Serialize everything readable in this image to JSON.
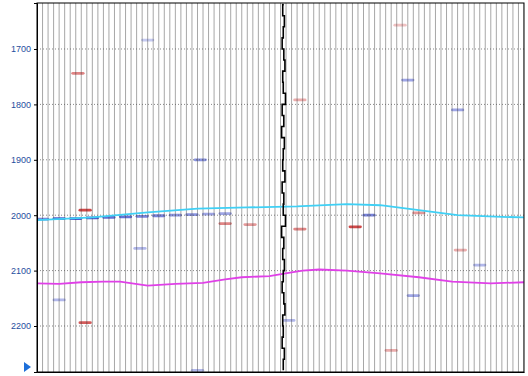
{
  "chart_data": {
    "type": "seismic",
    "xlim": [
      0,
      88
    ],
    "xticks": [
      0,
      1,
      2,
      3,
      4,
      5,
      6,
      7,
      8,
      9,
      10,
      11,
      12,
      13,
      14,
      15,
      16,
      17,
      18,
      19,
      20,
      21,
      22,
      23,
      24,
      25,
      26,
      27,
      28,
      29,
      30,
      31,
      32,
      33,
      34,
      35,
      36,
      37,
      38,
      39,
      40,
      41,
      42,
      43,
      44,
      45,
      46,
      47,
      48,
      49,
      50,
      51,
      52,
      53,
      54,
      55,
      56,
      57,
      58,
      59,
      60,
      61,
      62,
      63,
      64,
      65,
      66,
      67,
      68,
      69,
      70,
      71,
      72,
      73,
      74,
      75,
      76,
      77,
      78,
      79,
      80,
      81,
      82,
      83,
      84,
      85,
      86,
      87,
      88
    ],
    "ylim": [
      1617,
      2283
    ],
    "yticks": [
      1700,
      1800,
      1900,
      2000,
      2100,
      2200
    ],
    "grid": true,
    "tick_labels": "y",
    "clim": [
      -1,
      1
    ],
    "series": [
      {
        "type": "line",
        "color": "#3fd0f5",
        "x": [
          0,
          10,
          20,
          29,
          38,
          47,
          56,
          62,
          69,
          76,
          84,
          88
        ],
        "values": [
          2009,
          2004,
          1995,
          1988,
          1986,
          1984,
          1980,
          1982,
          1991,
          2000,
          2003,
          2004
        ]
      },
      {
        "type": "line",
        "color": "#e040e8",
        "x": [
          0,
          4,
          8,
          12,
          15,
          20,
          25,
          30,
          34,
          37,
          42,
          46,
          48,
          51,
          56,
          62,
          69,
          75,
          82,
          88
        ],
        "values": [
          2123,
          2124,
          2121,
          2120,
          2120,
          2127,
          2124,
          2122,
          2116,
          2112,
          2110,
          2103,
          2100,
          2098,
          2100,
          2105,
          2112,
          2120,
          2123,
          2121
        ]
      }
    ],
    "well_log": {
      "color": "#000000",
      "x": [
        44.6,
        44.4,
        44.7,
        44.5,
        44.3,
        44.6,
        44.8,
        44.4,
        44.5,
        44.9,
        44.3,
        44.6,
        44.2,
        44.7,
        44.5,
        44.4,
        44.8,
        44.3,
        44.6,
        44.5,
        44.9,
        44.2,
        44.6,
        44.4,
        44.7,
        44.5,
        44.3,
        44.6,
        44.8,
        44.4,
        44.5,
        44.3,
        44.7,
        44.5
      ],
      "y": [
        1620,
        1640,
        1660,
        1680,
        1700,
        1720,
        1740,
        1760,
        1780,
        1800,
        1820,
        1840,
        1860,
        1880,
        1900,
        1920,
        1940,
        1960,
        1980,
        2000,
        2020,
        2040,
        2060,
        2080,
        2100,
        2120,
        2140,
        2160,
        2180,
        2200,
        2220,
        2240,
        2260,
        2280
      ]
    },
    "amplitudes": {
      "x": [
        7.4,
        8.7,
        1,
        4,
        7,
        10,
        13,
        16,
        19,
        22,
        25,
        28,
        31,
        34,
        60,
        69,
        57.5,
        47.5,
        38.5,
        34,
        29.5,
        47.5,
        45.5,
        8.7,
        4,
        68,
        67,
        65.6,
        20,
        76,
        29,
        64,
        18.6,
        76.5,
        80
      ],
      "y": [
        1744,
        1991,
        2007,
        2006,
        2006,
        2005,
        2004,
        2003,
        2002,
        2001,
        2000,
        1999,
        1998,
        1997,
        2000,
        1996,
        2021,
        2025,
        2017,
        2015,
        1900,
        1792,
        2190,
        2194,
        2153,
        2145,
        1756,
        1657,
        1684,
        1810,
        2280,
        2244,
        2060,
        2063,
        2090
      ],
      "values": [
        0.6,
        0.9,
        -0.7,
        -0.9,
        -0.9,
        -0.9,
        -0.8,
        -0.8,
        -0.7,
        -0.7,
        -0.6,
        -0.6,
        -0.5,
        -0.5,
        -0.7,
        0.5,
        0.9,
        0.6,
        0.5,
        0.6,
        -0.6,
        0.4,
        -0.4,
        0.8,
        -0.4,
        -0.5,
        -0.5,
        0.3,
        -0.3,
        -0.5,
        -0.4,
        0.4,
        -0.4,
        0.4,
        -0.4
      ]
    }
  }
}
